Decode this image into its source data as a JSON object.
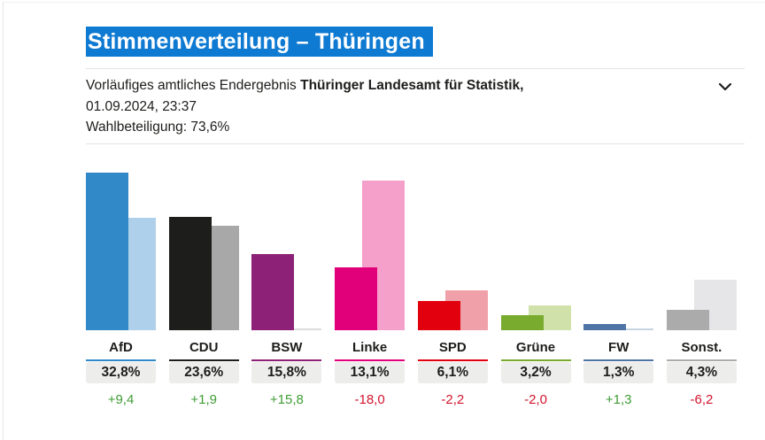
{
  "header": {
    "title": "Stimmenverteilung – Thüringen",
    "status_text": "Vorläufiges amtliches Endergebnis",
    "source": "Thüringer Landesamt für Statistik,",
    "date_time": "01.09.2024, 23:37",
    "turnout": "Wahlbeteiligung: 73,6%",
    "collapse_icon": "chevron-down-icon"
  },
  "colors": {
    "title_highlight_bg": "#0e7ad2",
    "title_text": "#ffffff",
    "body_text": "#1d1d1b",
    "rule": "#e3e3e3",
    "value_box_bg": "#ededeb",
    "positive_change": "#3f9c35",
    "negative_change": "#d2142d"
  },
  "chart_data": {
    "type": "bar",
    "title": "Stimmenverteilung – Thüringen",
    "unit": "%",
    "ylim": [
      0,
      33
    ],
    "grid": false,
    "legend": "none",
    "categories": [
      "AfD",
      "CDU",
      "BSW",
      "Linke",
      "SPD",
      "Grüne",
      "FW",
      "Sonst."
    ],
    "series": [
      {
        "name": "current_result",
        "values": [
          32.8,
          23.6,
          15.8,
          13.1,
          6.1,
          3.2,
          1.3,
          4.3
        ]
      },
      {
        "name": "previous_result",
        "values": [
          23.4,
          21.7,
          0.0,
          31.1,
          8.3,
          5.2,
          0.0,
          10.5
        ]
      }
    ],
    "changes": [
      9.4,
      1.9,
      15.8,
      -18.0,
      -2.2,
      -2.0,
      1.3,
      -6.2
    ],
    "parties": [
      {
        "name": "AfD",
        "value": 32.8,
        "prev": 23.4,
        "value_label": "32,8%",
        "change_label": "+9,4",
        "trend": "up",
        "color": "#3289c7",
        "prev_color": "#aed0ea"
      },
      {
        "name": "CDU",
        "value": 23.6,
        "prev": 21.7,
        "value_label": "23,6%",
        "change_label": "+1,9",
        "trend": "up",
        "color": "#1d1d1b",
        "prev_color": "#a8a8a8"
      },
      {
        "name": "BSW",
        "value": 15.8,
        "prev": 0.0,
        "value_label": "15,8%",
        "change_label": "+15,8",
        "trend": "up",
        "color": "#8d2077",
        "prev_color": "#dcdcdc"
      },
      {
        "name": "Linke",
        "value": 13.1,
        "prev": 31.1,
        "value_label": "13,1%",
        "change_label": "-18,0",
        "trend": "down",
        "color": "#e1007a",
        "prev_color": "#f4a0ca"
      },
      {
        "name": "SPD",
        "value": 6.1,
        "prev": 8.3,
        "value_label": "6,1%",
        "change_label": "-2,2",
        "trend": "down",
        "color": "#e2000f",
        "prev_color": "#f0a0a8"
      },
      {
        "name": "Grüne",
        "value": 3.2,
        "prev": 5.2,
        "value_label": "3,2%",
        "change_label": "-2,0",
        "trend": "down",
        "color": "#78ab2e",
        "prev_color": "#d0e2a9"
      },
      {
        "name": "FW",
        "value": 1.3,
        "prev": 0.0,
        "value_label": "1,3%",
        "change_label": "+1,3",
        "trend": "up",
        "color": "#4d74a4",
        "prev_color": "#c8d4e2"
      },
      {
        "name": "Sonst.",
        "value": 4.3,
        "prev": 10.5,
        "value_label": "4,3%",
        "change_label": "-6,2",
        "trend": "down",
        "color": "#ababab",
        "prev_color": "#e6e6e8"
      }
    ]
  }
}
